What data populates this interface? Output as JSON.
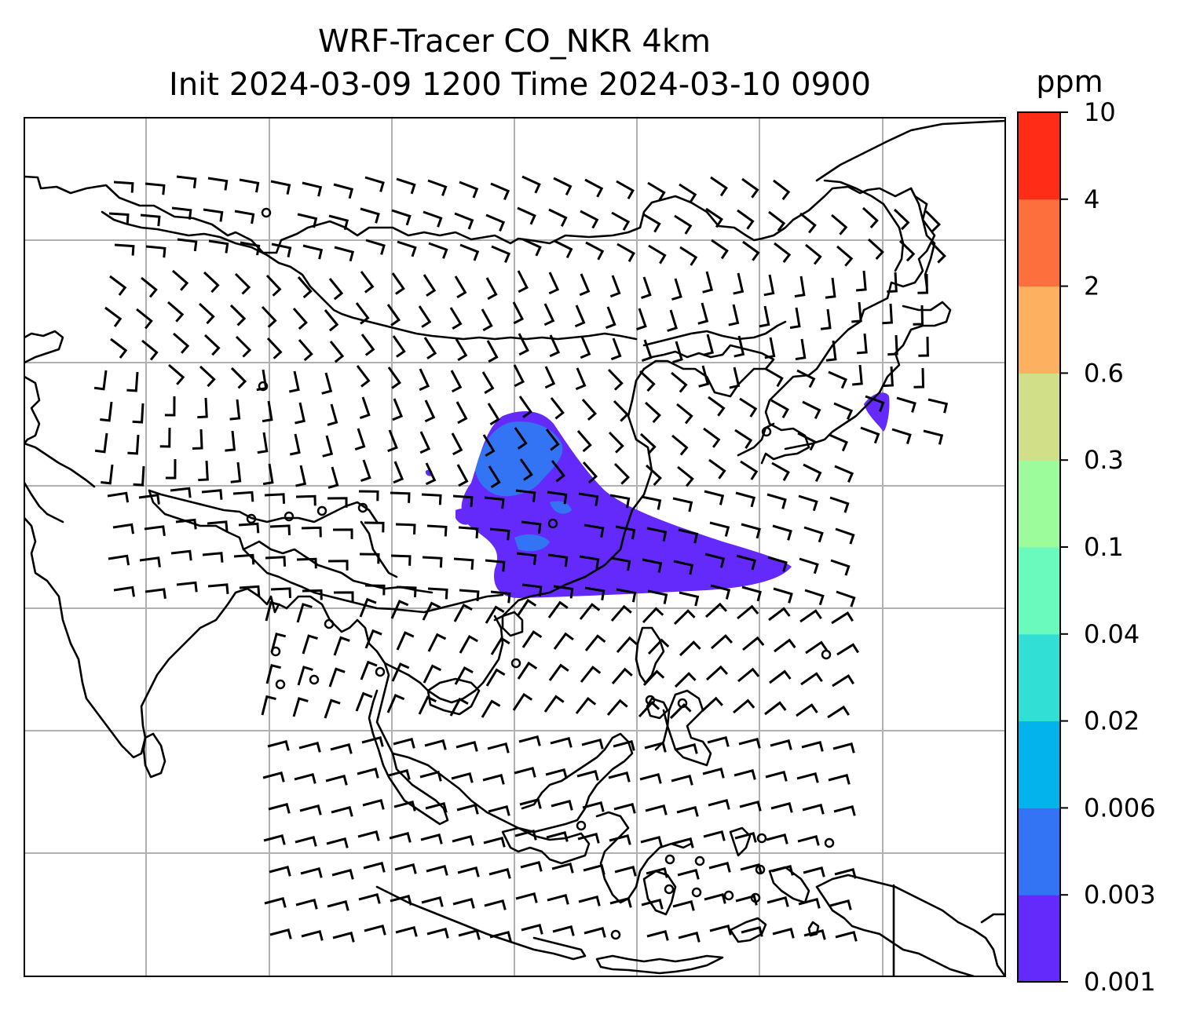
{
  "title": {
    "line1": "WRF-Tracer CO_NKR 4km",
    "line2": "Init 2024-03-09 1200 Time 2024-03-10 0900"
  },
  "colorbar": {
    "unit": "ppm",
    "ticks": [
      "0.001",
      "0.003",
      "0.006",
      "0.02",
      "0.04",
      "0.1",
      "0.3",
      "0.6",
      "2",
      "4",
      "10"
    ],
    "colors": [
      "#6429fb",
      "#3274f3",
      "#02b3ec",
      "#31dfd4",
      "#6bfabd",
      "#9cfb9b",
      "#d1e088",
      "#fdb060",
      "#fd6f3c",
      "#ff2c18"
    ]
  },
  "map": {
    "gridlines": true,
    "projection_grid": "8 columns x 7 rows",
    "coastline_color": "#000000",
    "wind_barbs": true,
    "tracer_plume": {
      "dominant_level": "0.001-0.003 ppm",
      "secondary_level": "0.003-0.006 ppm"
    }
  }
}
